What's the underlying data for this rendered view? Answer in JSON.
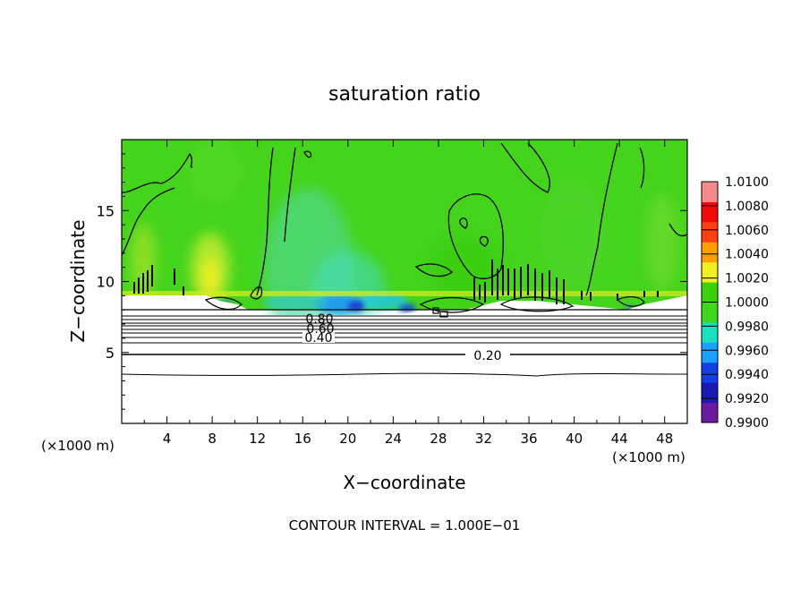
{
  "chart_data": {
    "type": "heatmap",
    "title": "saturation ratio",
    "xlabel": "X−coordinate",
    "ylabel": "Z−coordinate",
    "x_unit_left": "(×1000 m)",
    "x_unit_right": "(×1000 m)",
    "xlim": [
      0,
      50
    ],
    "ylim": [
      0,
      20
    ],
    "x_ticks": [
      4,
      8,
      12,
      16,
      20,
      24,
      28,
      32,
      36,
      40,
      44,
      48
    ],
    "y_ticks": [
      5,
      10,
      15
    ],
    "colorbar": {
      "min": 0.99,
      "max": 1.01,
      "tick_labels": [
        "1.0100",
        "1.0080",
        "1.0060",
        "1.0040",
        "1.0020",
        "1.0000",
        "0.9980",
        "0.9960",
        "0.9940",
        "0.9920",
        "0.9900"
      ],
      "colors": [
        "#6a1ba0",
        "#1a1ab4",
        "#1240e6",
        "#1aa0ff",
        "#18e0c0",
        "#40d81a",
        "#3ad20a",
        "#eef020",
        "#ffa000",
        "#ff4010",
        "#f20a0a",
        "#f58a8a"
      ]
    },
    "contour_labels": [
      "0.20",
      "0.40",
      "0.60",
      "0.80"
    ],
    "contour_interval_text": "CONTOUR INTERVAL = 1.000E−01",
    "grid": false
  }
}
